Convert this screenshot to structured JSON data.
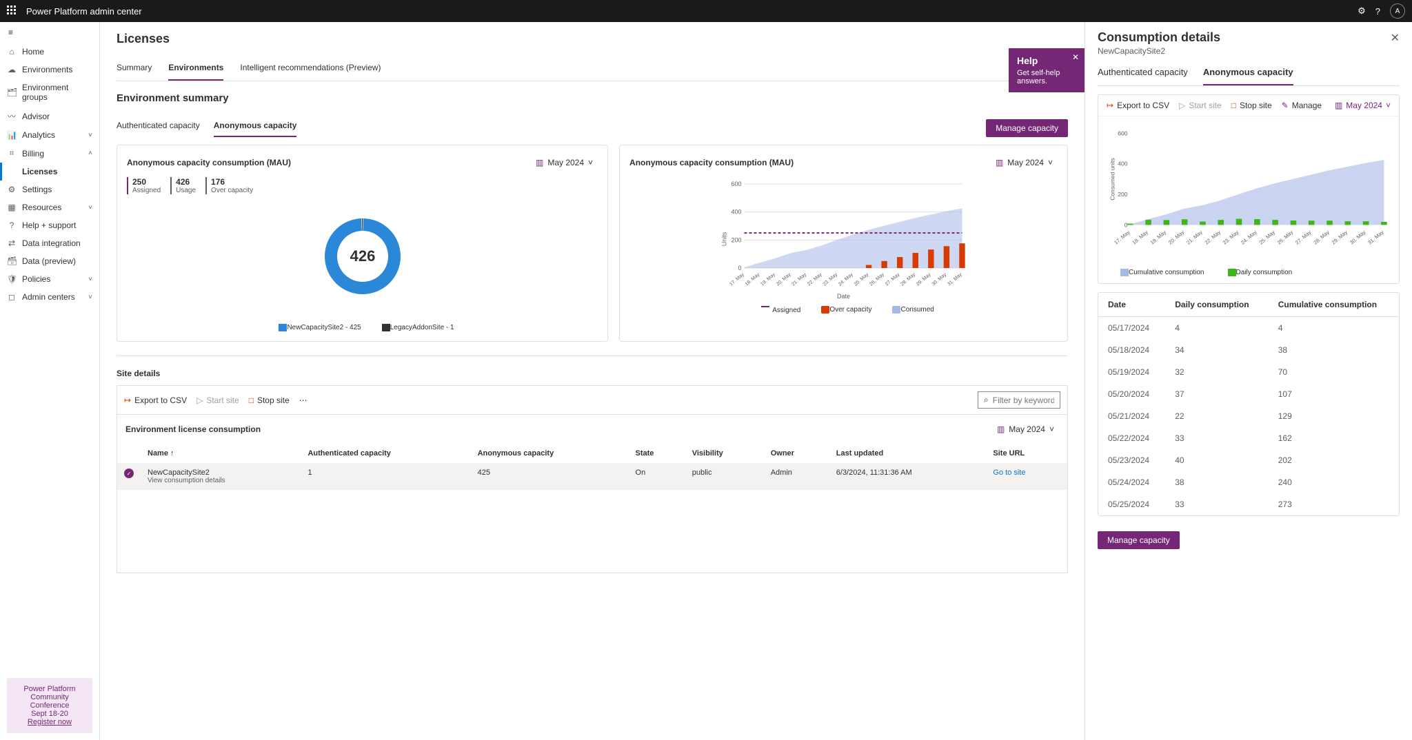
{
  "topbar": {
    "title": "Power Platform admin center",
    "avatar_initial": "A"
  },
  "sidebar": {
    "items": [
      {
        "label": "Home",
        "icon": "⌂"
      },
      {
        "label": "Environments",
        "icon": "☁"
      },
      {
        "label": "Environment groups",
        "icon": "🗂"
      },
      {
        "label": "Advisor",
        "icon": "〰"
      },
      {
        "label": "Analytics",
        "icon": "📊",
        "chev": "˅"
      },
      {
        "label": "Billing",
        "icon": "⌗",
        "chev": "˄",
        "expanded": true
      },
      {
        "label": "Licenses",
        "sub": true,
        "active": true
      },
      {
        "label": "Settings",
        "icon": "⚙"
      },
      {
        "label": "Resources",
        "icon": "▦",
        "chev": "˅"
      },
      {
        "label": "Help + support",
        "icon": "?"
      },
      {
        "label": "Data integration",
        "icon": "⇄"
      },
      {
        "label": "Data (preview)",
        "icon": "🗃"
      },
      {
        "label": "Policies",
        "icon": "🛡",
        "chev": "˅"
      },
      {
        "label": "Admin centers",
        "icon": "◻",
        "chev": "˅"
      }
    ],
    "promo": {
      "line1": "Power Platform",
      "line2": "Community Conference",
      "line3": "Sept 18-20",
      "link": "Register now"
    }
  },
  "main": {
    "title": "Licenses",
    "tabs": [
      "Summary",
      "Environments",
      "Intelligent recommendations (Preview)"
    ],
    "active_tab": 1,
    "section_title": "Environment summary",
    "subtabs": [
      "Authenticated capacity",
      "Anonymous capacity"
    ],
    "active_subtab": 1,
    "manage_btn": "Manage capacity",
    "help": {
      "title": "Help",
      "text": "Get self-help answers."
    }
  },
  "donut_card": {
    "title": "Anonymous capacity consumption (MAU)",
    "date": "May 2024",
    "kpis": [
      {
        "n": "250",
        "l": "Assigned"
      },
      {
        "n": "426",
        "l": "Usage"
      },
      {
        "n": "176",
        "l": "Over capacity"
      }
    ],
    "center_value": "426",
    "legend": [
      {
        "color": "#2b88d8",
        "label": "NewCapacitySite2 - 425"
      },
      {
        "color": "#323130",
        "label": "LegacyAddonSite - 1"
      }
    ],
    "slices": [
      {
        "color": "#2b88d8",
        "value": 425
      },
      {
        "color": "#323130",
        "value": 1
      }
    ]
  },
  "area_card": {
    "title": "Anonymous capacity consumption (MAU)",
    "date": "May 2024",
    "y_label": "Units",
    "x_label": "Date",
    "y_max": 600,
    "y_ticks": [
      0,
      200,
      400,
      600
    ],
    "assigned_line": 250,
    "categories": [
      "17. May",
      "18. May",
      "19. May",
      "20. May",
      "21. May",
      "22. May",
      "23. May",
      "24. May",
      "25. May",
      "26. May",
      "27. May",
      "28. May",
      "29. May",
      "30. May",
      "31. May"
    ],
    "consumed": [
      4,
      38,
      70,
      107,
      129,
      162,
      202,
      240,
      273,
      302,
      330,
      358,
      382,
      406,
      426
    ],
    "over_bars": [
      0,
      0,
      0,
      0,
      0,
      0,
      0,
      0,
      22,
      50,
      78,
      108,
      132,
      156,
      176
    ],
    "colors": {
      "assigned": "#742774",
      "over": "#d83b01",
      "consumed": "#a6b8e8",
      "grid": "#e1dfdd",
      "text": "#605e5c"
    },
    "legend": [
      {
        "style": "dash",
        "color": "#742774",
        "label": "Assigned"
      },
      {
        "style": "box",
        "color": "#d83b01",
        "label": "Over capacity"
      },
      {
        "style": "box",
        "color": "#a6b8e8",
        "label": "Consumed"
      }
    ]
  },
  "site_details": {
    "title": "Site details",
    "toolbar": {
      "export": "Export to CSV",
      "start": "Start site",
      "stop": "Stop site",
      "filter_ph": "Filter by keyword"
    }
  },
  "elc": {
    "title": "Environment license consumption",
    "date": "May 2024",
    "columns": [
      "Name",
      "Authenticated capacity",
      "Anonymous capacity",
      "State",
      "Visibility",
      "Owner",
      "Last updated",
      "Site URL"
    ],
    "row": {
      "name": "NewCapacitySite2",
      "name2": "View consumption details",
      "auth": "1",
      "anon": "425",
      "state": "On",
      "vis": "public",
      "owner": "Admin",
      "updated": "6/3/2024, 11:31:36 AM",
      "url": "Go to site"
    }
  },
  "detail": {
    "title": "Consumption details",
    "subtitle": "NewCapacitySite2",
    "tabs": [
      "Authenticated capacity",
      "Anonymous capacity"
    ],
    "active_tab": 1,
    "toolbar": {
      "export": "Export to CSV",
      "start": "Start site",
      "stop": "Stop site",
      "manage": "Manage",
      "date": "May 2024"
    },
    "chart": {
      "y_label": "Consumed units",
      "y_max": 600,
      "y_ticks": [
        0,
        200,
        400,
        600
      ],
      "categories": [
        "17. May",
        "18. May",
        "19. May",
        "20. May",
        "21. May",
        "22. May",
        "23. May",
        "24. May",
        "25. May",
        "26. May",
        "27. May",
        "28. May",
        "29. May",
        "30. May",
        "31. May"
      ],
      "cumulative": [
        4,
        38,
        70,
        107,
        129,
        162,
        202,
        240,
        273,
        302,
        330,
        358,
        382,
        406,
        426
      ],
      "daily": [
        4,
        34,
        32,
        37,
        22,
        33,
        40,
        38,
        33,
        29,
        28,
        28,
        24,
        24,
        20
      ],
      "colors": {
        "cumulative": "#a6b8e8",
        "daily": "#3fb618",
        "grid": "#f0f0f0",
        "text": "#605e5c"
      },
      "legend": [
        {
          "color": "#a6b8e8",
          "label": "Cumulative consumption"
        },
        {
          "color": "#3fb618",
          "label": "Daily consumption"
        }
      ]
    },
    "table": {
      "columns": [
        "Date",
        "Daily consumption",
        "Cumulative consumption"
      ],
      "rows": [
        [
          "05/17/2024",
          "4",
          "4"
        ],
        [
          "05/18/2024",
          "34",
          "38"
        ],
        [
          "05/19/2024",
          "32",
          "70"
        ],
        [
          "05/20/2024",
          "37",
          "107"
        ],
        [
          "05/21/2024",
          "22",
          "129"
        ],
        [
          "05/22/2024",
          "33",
          "162"
        ],
        [
          "05/23/2024",
          "40",
          "202"
        ],
        [
          "05/24/2024",
          "38",
          "240"
        ],
        [
          "05/25/2024",
          "33",
          "273"
        ]
      ]
    },
    "footer_btn": "Manage capacity"
  }
}
